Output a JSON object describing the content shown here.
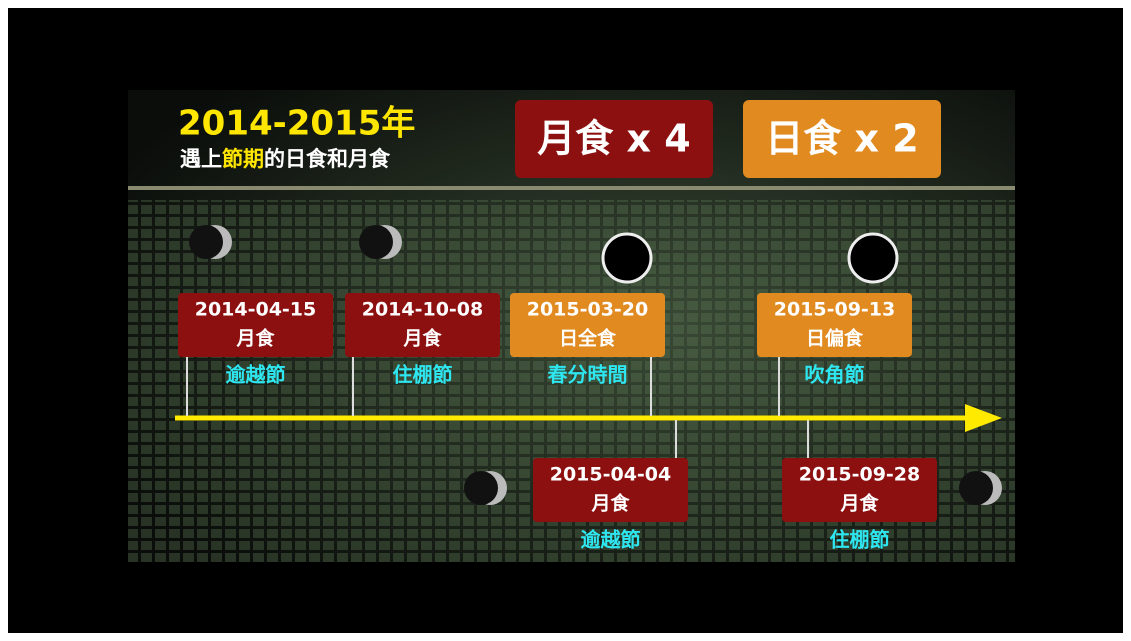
{
  "header": {
    "title": "2014-2015年",
    "subtitle_parts": [
      "遇上",
      "節期",
      "的日食和月食"
    ]
  },
  "badges": [
    {
      "label": "月食 x 4",
      "color": "#8c1010"
    },
    {
      "label": "日食 x 2",
      "color": "#e08a20"
    }
  ],
  "events": [
    {
      "date": "2014-04-15",
      "kind": "月食",
      "festival": "逾越節",
      "color": "#8c1010"
    },
    {
      "date": "2014-10-08",
      "kind": "月食",
      "festival": "住棚節",
      "color": "#8c1010"
    },
    {
      "date": "2015-03-20",
      "kind": "日全食",
      "festival": "春分時間",
      "color": "#e08a20"
    },
    {
      "date": "2015-04-04",
      "kind": "月食",
      "festival": "逾越節",
      "color": "#8c1010"
    },
    {
      "date": "2015-09-13",
      "kind": "日偏食",
      "festival": "吹角節",
      "color": "#e08a20"
    },
    {
      "date": "2015-09-28",
      "kind": "月食",
      "festival": "住棚節",
      "color": "#8c1010"
    }
  ]
}
